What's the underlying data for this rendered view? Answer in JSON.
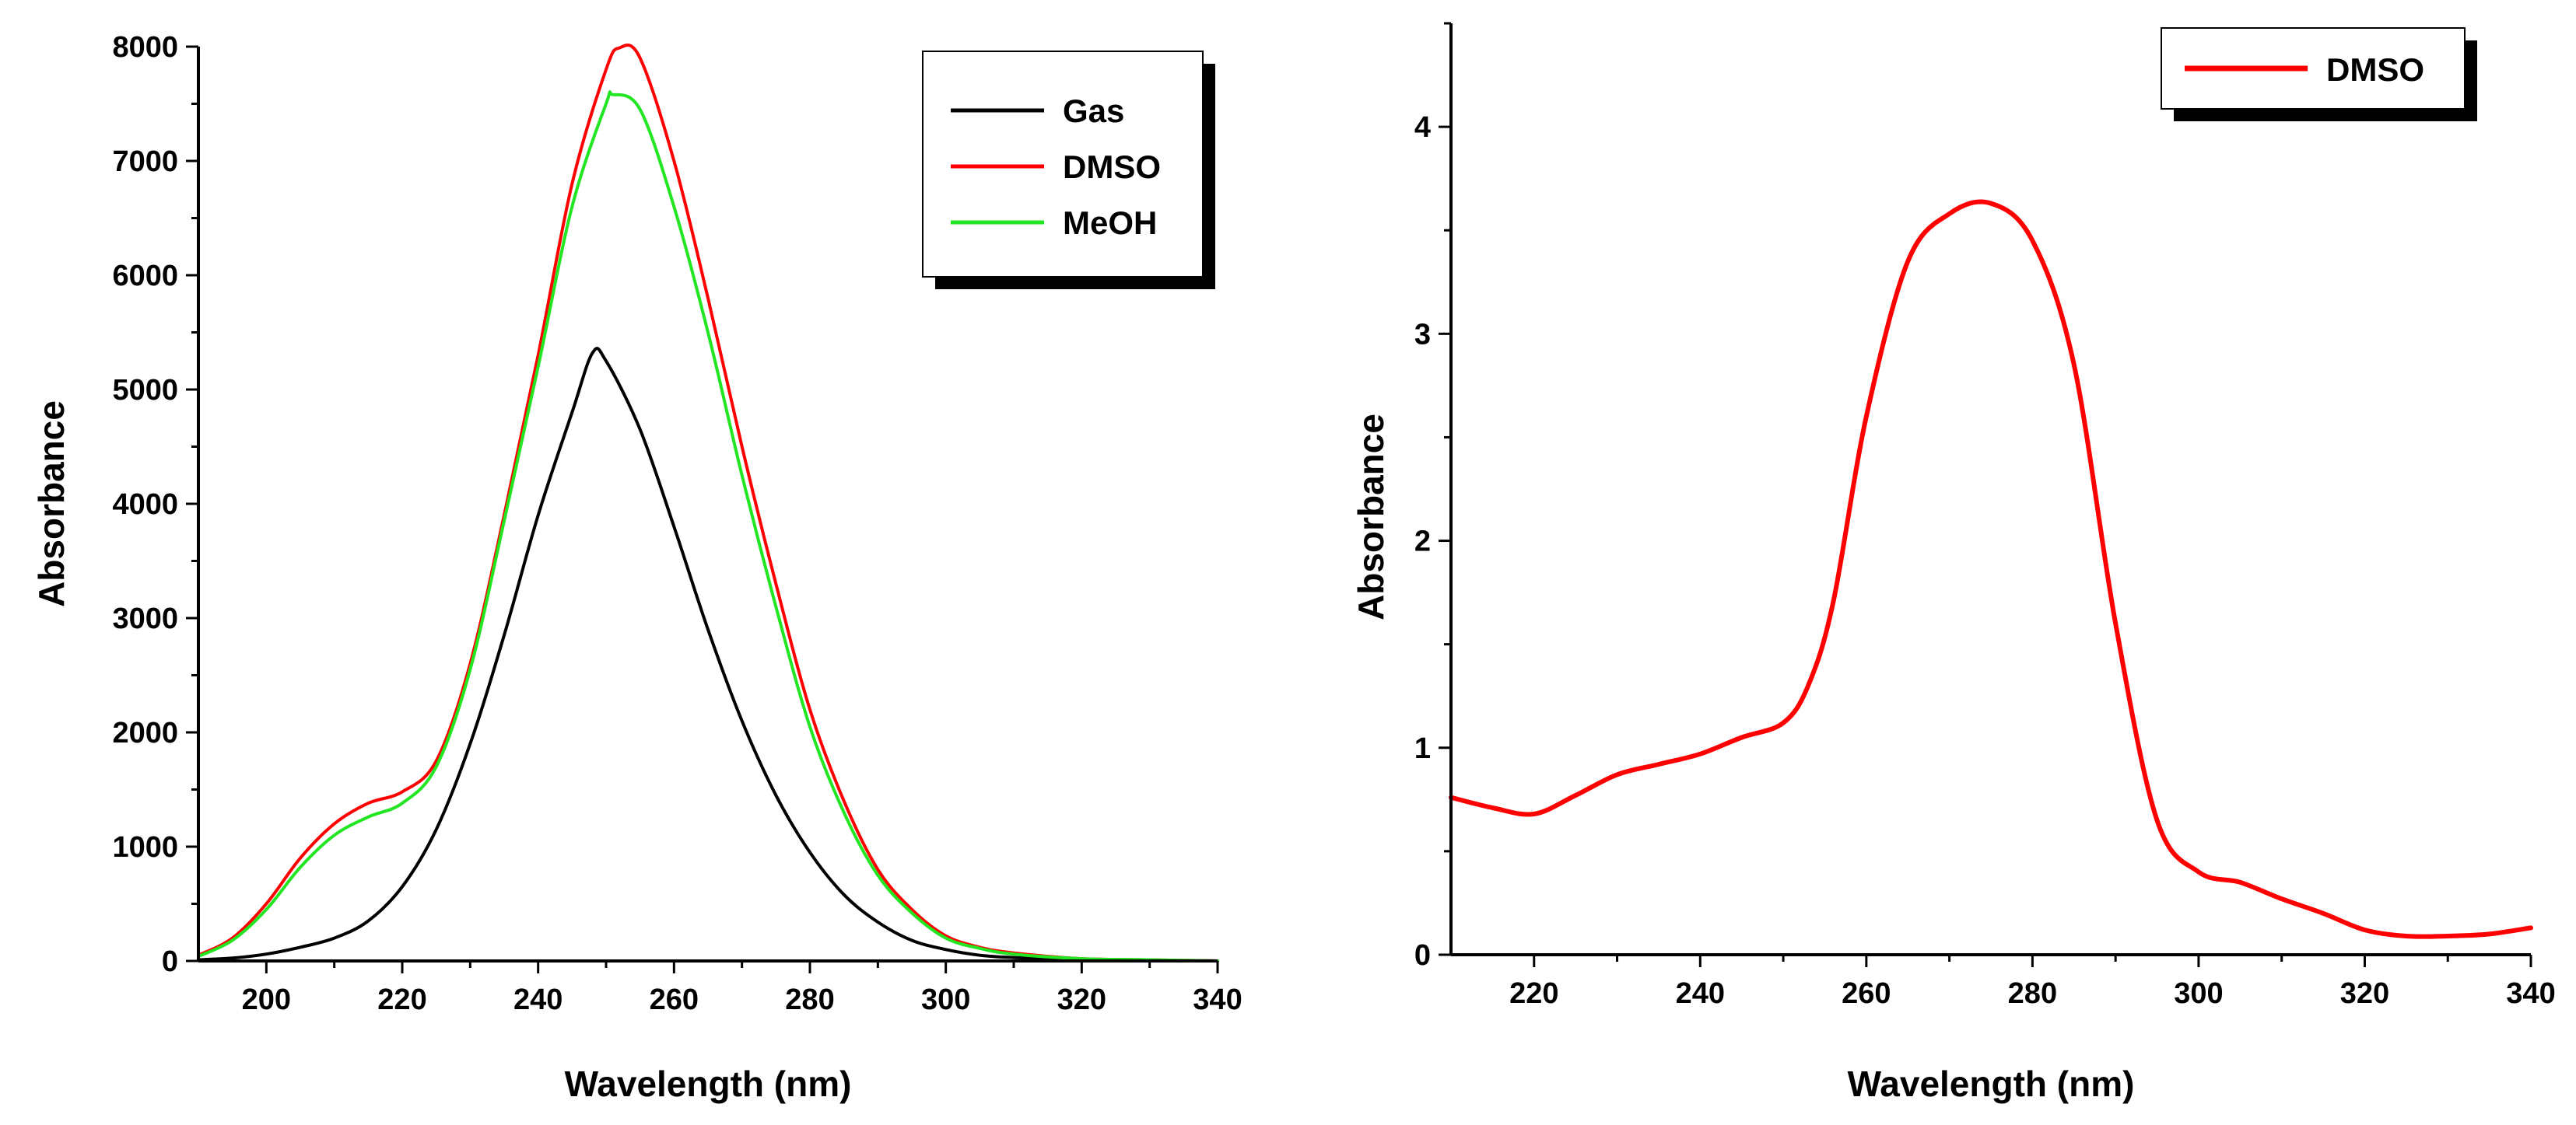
{
  "chart_data": [
    {
      "type": "line",
      "xlabel": "Wavelength (nm)",
      "ylabel": "Absorbance",
      "xlim": [
        190,
        340
      ],
      "ylim": [
        0,
        8000
      ],
      "xticks": [
        200,
        220,
        240,
        260,
        280,
        300,
        320,
        340
      ],
      "yticks": [
        0,
        1000,
        2000,
        3000,
        4000,
        5000,
        6000,
        7000,
        8000
      ],
      "legend_position": "top-right",
      "series": [
        {
          "name": "Gas",
          "color": "#000000",
          "x": [
            190,
            195,
            200,
            205,
            210,
            215,
            220,
            225,
            230,
            235,
            240,
            245,
            248,
            250,
            255,
            260,
            265,
            270,
            275,
            280,
            285,
            290,
            295,
            300,
            305,
            310,
            320,
            330,
            340
          ],
          "y": [
            10,
            25,
            60,
            120,
            200,
            350,
            650,
            1150,
            1900,
            2850,
            3900,
            4800,
            5320,
            5250,
            4650,
            3800,
            2900,
            2100,
            1450,
            950,
            580,
            340,
            180,
            100,
            50,
            30,
            10,
            5,
            0
          ]
        },
        {
          "name": "DMSO",
          "color": "#ff0000",
          "x": [
            190,
            195,
            200,
            205,
            210,
            215,
            220,
            225,
            230,
            235,
            240,
            245,
            250,
            252,
            255,
            260,
            265,
            270,
            275,
            280,
            285,
            290,
            295,
            300,
            305,
            310,
            320,
            330,
            340
          ],
          "y": [
            50,
            200,
            500,
            900,
            1200,
            1380,
            1480,
            1750,
            2600,
            3900,
            5300,
            6800,
            7800,
            7990,
            7900,
            7000,
            5800,
            4500,
            3300,
            2200,
            1400,
            800,
            450,
            220,
            120,
            70,
            20,
            10,
            0
          ]
        },
        {
          "name": "MeOH",
          "color": "#22e622",
          "x": [
            190,
            195,
            200,
            205,
            210,
            215,
            220,
            225,
            230,
            235,
            240,
            245,
            250,
            251,
            255,
            260,
            265,
            270,
            275,
            280,
            285,
            290,
            295,
            300,
            305,
            310,
            320,
            330,
            340
          ],
          "y": [
            40,
            180,
            450,
            820,
            1100,
            1260,
            1380,
            1700,
            2550,
            3850,
            5200,
            6600,
            7500,
            7580,
            7450,
            6600,
            5500,
            4250,
            3100,
            2050,
            1300,
            750,
            420,
            200,
            110,
            60,
            20,
            10,
            0
          ]
        }
      ]
    },
    {
      "type": "line",
      "xlabel": "Wavelength (nm)",
      "ylabel": "Absorbance",
      "xlim": [
        210,
        340
      ],
      "ylim": [
        0,
        4.5
      ],
      "xticks": [
        220,
        240,
        260,
        280,
        300,
        320,
        340
      ],
      "yticks": [
        0,
        1,
        2,
        3,
        4
      ],
      "legend_position": "top-right",
      "series": [
        {
          "name": "DMSO",
          "color": "#ff0000",
          "x": [
            210,
            215,
            220,
            225,
            230,
            235,
            240,
            245,
            250,
            253,
            256,
            260,
            265,
            270,
            275,
            280,
            285,
            290,
            295,
            300,
            305,
            310,
            315,
            320,
            325,
            330,
            335,
            340
          ],
          "y": [
            0.76,
            0.71,
            0.68,
            0.77,
            0.87,
            0.92,
            0.97,
            1.05,
            1.12,
            1.3,
            1.7,
            2.6,
            3.35,
            3.58,
            3.63,
            3.45,
            2.85,
            1.6,
            0.65,
            0.4,
            0.35,
            0.27,
            0.2,
            0.12,
            0.09,
            0.09,
            0.1,
            0.13
          ]
        }
      ]
    }
  ]
}
